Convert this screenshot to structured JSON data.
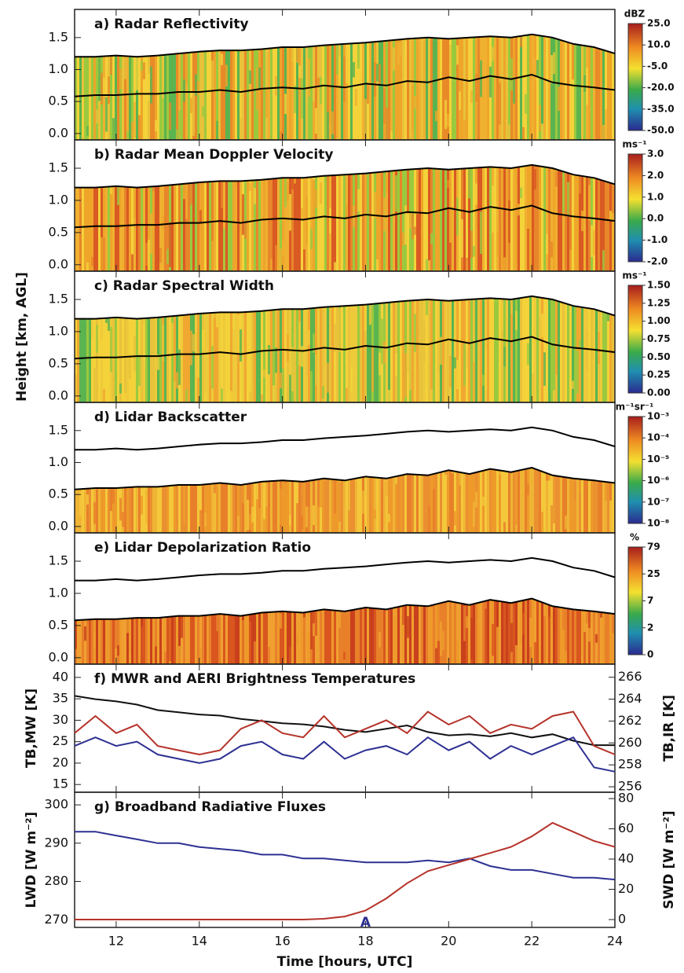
{
  "chart_data": [
    {
      "type": "heatmap",
      "title": "a) Radar Reflectivity",
      "x": [
        11,
        11.5,
        12,
        12.5,
        13,
        13.5,
        14,
        14.5,
        15,
        15.5,
        16,
        16.5,
        17,
        17.5,
        18,
        18.5,
        19,
        19.5,
        20,
        20.5,
        21,
        21.5,
        22,
        22.5,
        23,
        23.5,
        24
      ],
      "series": [
        {
          "color": "#000000",
          "values": [
            0.58,
            0.6,
            0.6,
            0.62,
            0.62,
            0.65,
            0.65,
            0.68,
            0.65,
            0.7,
            0.72,
            0.7,
            0.75,
            0.72,
            0.78,
            0.75,
            0.82,
            0.8,
            0.88,
            0.82,
            0.9,
            0.85,
            0.92,
            0.8,
            0.75,
            0.72,
            0.68
          ]
        },
        {
          "color": "#000000",
          "values": [
            1.2,
            1.2,
            1.22,
            1.2,
            1.22,
            1.25,
            1.28,
            1.3,
            1.3,
            1.32,
            1.35,
            1.35,
            1.38,
            1.4,
            1.42,
            1.45,
            1.48,
            1.5,
            1.48,
            1.5,
            1.52,
            1.5,
            1.55,
            1.5,
            1.4,
            1.35,
            1.25
          ]
        }
      ],
      "xlim": [
        11,
        24
      ],
      "ylim": [
        -0.1,
        1.94
      ],
      "yticks": [
        {
          "value": 0,
          "label": "0.0"
        },
        {
          "value": 0.5,
          "label": "0.5"
        },
        {
          "value": 1,
          "label": "1.0"
        },
        {
          "value": 1.5,
          "label": "1.5"
        }
      ],
      "colorbar": {
        "label": "dBZ",
        "ticks": [
          {
            "value": 25,
            "label": "25.0"
          },
          {
            "value": 10,
            "label": "10.0"
          },
          {
            "value": -5,
            "label": "-5.0"
          },
          {
            "value": -20,
            "label": "-20.0"
          },
          {
            "value": -35,
            "label": "-35.0"
          },
          {
            "value": -50,
            "label": "-50.0"
          }
        ]
      }
    },
    {
      "type": "heatmap",
      "title": "b) Radar Mean Doppler Velocity",
      "x": [
        11,
        11.5,
        12,
        12.5,
        13,
        13.5,
        14,
        14.5,
        15,
        15.5,
        16,
        16.5,
        17,
        17.5,
        18,
        18.5,
        19,
        19.5,
        20,
        20.5,
        21,
        21.5,
        22,
        22.5,
        23,
        23.5,
        24
      ],
      "series": [
        {
          "color": "#000000",
          "values": [
            0.58,
            0.6,
            0.6,
            0.62,
            0.62,
            0.65,
            0.65,
            0.68,
            0.65,
            0.7,
            0.72,
            0.7,
            0.75,
            0.72,
            0.78,
            0.75,
            0.82,
            0.8,
            0.88,
            0.82,
            0.9,
            0.85,
            0.92,
            0.8,
            0.75,
            0.72,
            0.68
          ]
        },
        {
          "color": "#000000",
          "values": [
            1.2,
            1.2,
            1.22,
            1.2,
            1.22,
            1.25,
            1.28,
            1.3,
            1.3,
            1.32,
            1.35,
            1.35,
            1.38,
            1.4,
            1.42,
            1.45,
            1.48,
            1.5,
            1.48,
            1.5,
            1.52,
            1.5,
            1.55,
            1.5,
            1.4,
            1.35,
            1.25
          ]
        }
      ],
      "xlim": [
        11,
        24
      ],
      "ylim": [
        -0.1,
        1.94
      ],
      "yticks": [
        {
          "value": 0,
          "label": "0.0"
        },
        {
          "value": 0.5,
          "label": "0.5"
        },
        {
          "value": 1,
          "label": "1.0"
        },
        {
          "value": 1.5,
          "label": "1.5"
        }
      ],
      "colorbar": {
        "label": "ms⁻¹",
        "ticks": [
          {
            "value": 3,
            "label": "3.0"
          },
          {
            "value": 2,
            "label": "2.0"
          },
          {
            "value": 1,
            "label": "1.0"
          },
          {
            "value": 0,
            "label": "0.0"
          },
          {
            "value": -1,
            "label": "-1.0"
          },
          {
            "value": -2,
            "label": "-2.0"
          }
        ]
      }
    },
    {
      "type": "heatmap",
      "title": "c) Radar Spectral Width",
      "ylabel": "Height [km, AGL]",
      "x": [
        11,
        11.5,
        12,
        12.5,
        13,
        13.5,
        14,
        14.5,
        15,
        15.5,
        16,
        16.5,
        17,
        17.5,
        18,
        18.5,
        19,
        19.5,
        20,
        20.5,
        21,
        21.5,
        22,
        22.5,
        23,
        23.5,
        24
      ],
      "series": [
        {
          "color": "#000000",
          "values": [
            0.58,
            0.6,
            0.6,
            0.62,
            0.62,
            0.65,
            0.65,
            0.68,
            0.65,
            0.7,
            0.72,
            0.7,
            0.75,
            0.72,
            0.78,
            0.75,
            0.82,
            0.8,
            0.88,
            0.82,
            0.9,
            0.85,
            0.92,
            0.8,
            0.75,
            0.72,
            0.68
          ]
        },
        {
          "color": "#000000",
          "values": [
            1.2,
            1.2,
            1.22,
            1.2,
            1.22,
            1.25,
            1.28,
            1.3,
            1.3,
            1.32,
            1.35,
            1.35,
            1.38,
            1.4,
            1.42,
            1.45,
            1.48,
            1.5,
            1.48,
            1.5,
            1.52,
            1.5,
            1.55,
            1.5,
            1.4,
            1.35,
            1.25
          ]
        }
      ],
      "xlim": [
        11,
        24
      ],
      "ylim": [
        -0.1,
        1.94
      ],
      "yticks": [
        {
          "value": 0,
          "label": "0.0"
        },
        {
          "value": 0.5,
          "label": "0.5"
        },
        {
          "value": 1,
          "label": "1.0"
        },
        {
          "value": 1.5,
          "label": "1.5"
        }
      ],
      "colorbar": {
        "label": "ms⁻¹",
        "ticks": [
          {
            "value": 1.5,
            "label": "1.50"
          },
          {
            "value": 1.25,
            "label": "1.25"
          },
          {
            "value": 1,
            "label": "1.00"
          },
          {
            "value": 0.75,
            "label": "0.75"
          },
          {
            "value": 0.5,
            "label": "0.50"
          },
          {
            "value": 0.25,
            "label": "0.25"
          },
          {
            "value": 0,
            "label": "0.00"
          }
        ]
      }
    },
    {
      "type": "heatmap",
      "title": "d) Lidar Backscatter",
      "x": [
        11,
        11.5,
        12,
        12.5,
        13,
        13.5,
        14,
        14.5,
        15,
        15.5,
        16,
        16.5,
        17,
        17.5,
        18,
        18.5,
        19,
        19.5,
        20,
        20.5,
        21,
        21.5,
        22,
        22.5,
        23,
        23.5,
        24
      ],
      "series": [
        {
          "color": "#000000",
          "values": [
            1.2,
            1.2,
            1.22,
            1.2,
            1.22,
            1.25,
            1.28,
            1.3,
            1.3,
            1.32,
            1.35,
            1.35,
            1.38,
            1.4,
            1.42,
            1.45,
            1.48,
            1.5,
            1.48,
            1.5,
            1.52,
            1.5,
            1.55,
            1.5,
            1.4,
            1.35,
            1.25
          ]
        },
        {
          "color": "#000000",
          "values": [
            0.58,
            0.6,
            0.6,
            0.62,
            0.62,
            0.65,
            0.65,
            0.68,
            0.65,
            0.7,
            0.72,
            0.7,
            0.75,
            0.72,
            0.78,
            0.75,
            0.82,
            0.8,
            0.88,
            0.82,
            0.9,
            0.85,
            0.92,
            0.8,
            0.75,
            0.72,
            0.68
          ]
        }
      ],
      "xlim": [
        11,
        24
      ],
      "ylim": [
        -0.1,
        1.94
      ],
      "yticks": [
        {
          "value": 0,
          "label": "0.0"
        },
        {
          "value": 0.5,
          "label": "0.5"
        },
        {
          "value": 1,
          "label": "1.0"
        },
        {
          "value": 1.5,
          "label": "1.5"
        }
      ],
      "colorbar": {
        "label": "m⁻¹sr⁻¹",
        "ticks": [
          {
            "value": 0.001,
            "label": "10⁻³"
          },
          {
            "value": 0.0001,
            "label": "10⁻⁴"
          },
          {
            "value": 1e-05,
            "label": "10⁻⁵"
          },
          {
            "value": 1e-06,
            "label": "10⁻⁶"
          },
          {
            "value": 1e-07,
            "label": "10⁻⁷"
          },
          {
            "value": 1e-08,
            "label": "10⁻⁸"
          }
        ]
      }
    },
    {
      "type": "heatmap",
      "title": "e) Lidar Depolarization Ratio",
      "x": [
        11,
        11.5,
        12,
        12.5,
        13,
        13.5,
        14,
        14.5,
        15,
        15.5,
        16,
        16.5,
        17,
        17.5,
        18,
        18.5,
        19,
        19.5,
        20,
        20.5,
        21,
        21.5,
        22,
        22.5,
        23,
        23.5,
        24
      ],
      "series": [
        {
          "color": "#000000",
          "values": [
            1.2,
            1.2,
            1.22,
            1.2,
            1.22,
            1.25,
            1.28,
            1.3,
            1.3,
            1.32,
            1.35,
            1.35,
            1.38,
            1.4,
            1.42,
            1.45,
            1.48,
            1.5,
            1.48,
            1.5,
            1.52,
            1.5,
            1.55,
            1.5,
            1.4,
            1.35,
            1.25
          ]
        },
        {
          "color": "#000000",
          "values": [
            0.58,
            0.6,
            0.6,
            0.62,
            0.62,
            0.65,
            0.65,
            0.68,
            0.65,
            0.7,
            0.72,
            0.7,
            0.75,
            0.72,
            0.78,
            0.75,
            0.82,
            0.8,
            0.88,
            0.82,
            0.9,
            0.85,
            0.92,
            0.8,
            0.75,
            0.72,
            0.68
          ]
        }
      ],
      "xlim": [
        11,
        24
      ],
      "ylim": [
        -0.1,
        1.94
      ],
      "yticks": [
        {
          "value": 0,
          "label": "0.0"
        },
        {
          "value": 0.5,
          "label": "0.5"
        },
        {
          "value": 1,
          "label": "1.0"
        },
        {
          "value": 1.5,
          "label": "1.5"
        }
      ],
      "colorbar": {
        "label": "%",
        "ticks": [
          79,
          25,
          7,
          2,
          0
        ]
      }
    },
    {
      "type": "line",
      "title": "f) MWR and AERI Brightness Temperatures",
      "ylabel": "TB,MW [K]",
      "y2label": "TB,IR [K]",
      "x": [
        11,
        11.5,
        12,
        12.5,
        13,
        13.5,
        14,
        14.5,
        15,
        15.5,
        16,
        16.5,
        17,
        17.5,
        18,
        18.5,
        19,
        19.5,
        20,
        20.5,
        21,
        21.5,
        22,
        22.5,
        23,
        23.5,
        24
      ],
      "series": [
        {
          "color": "#111111",
          "axis": "y2",
          "values": [
            264.3,
            264,
            263.8,
            263.5,
            263,
            262.8,
            262.6,
            262.5,
            262.2,
            262,
            261.8,
            261.7,
            261.5,
            261.2,
            261,
            261.3,
            261.6,
            261,
            260.7,
            260.8,
            260.6,
            260.9,
            260.5,
            260.8,
            260.2,
            259.8,
            259.8
          ]
        },
        {
          "color": "#b5332a",
          "values": [
            27,
            31,
            27,
            29,
            24,
            23,
            22,
            23,
            28,
            30,
            27,
            26,
            31,
            26,
            28,
            30,
            27,
            32,
            29,
            31,
            27,
            29,
            28,
            31,
            32,
            24,
            22
          ]
        },
        {
          "color": "#2e3192",
          "values": [
            24,
            26,
            24,
            25,
            22,
            21,
            20,
            21,
            24,
            25,
            22,
            21,
            25,
            21,
            23,
            24,
            22,
            26,
            23,
            25,
            21,
            24,
            22,
            24,
            26,
            19,
            18
          ]
        }
      ],
      "xlim": [
        11,
        24
      ],
      "ylim": [
        13.2,
        43.1
      ],
      "yticks": [
        15,
        20,
        25,
        30,
        35,
        40
      ],
      "y2lim": [
        255.5,
        267.2
      ],
      "y2ticks": [
        256,
        258,
        260,
        262,
        264,
        266
      ]
    },
    {
      "type": "line",
      "title": "g) Broadband Radiative Fluxes",
      "ylabel": "LWD [W m⁻²]",
      "y2label": "SWD [W m⁻²]",
      "xlabel": "Time [hours, UTC]",
      "x": [
        11,
        11.5,
        12,
        12.5,
        13,
        13.5,
        14,
        14.5,
        15,
        15.5,
        16,
        16.5,
        17,
        17.5,
        18,
        18.5,
        19,
        19.5,
        20,
        20.5,
        21,
        21.5,
        22,
        22.5,
        23,
        23.5,
        24
      ],
      "series": [
        {
          "color": "#2e3192",
          "values": [
            293,
            293,
            292,
            291,
            290,
            290,
            289,
            288.5,
            288,
            287,
            287,
            286,
            286,
            285.5,
            285,
            285,
            285,
            285.5,
            285,
            286,
            284,
            283,
            283,
            282,
            281,
            281,
            280.5
          ]
        },
        {
          "color": "#b5332a",
          "axis": "y2",
          "values": [
            0,
            0,
            0,
            0,
            0,
            0,
            0,
            0,
            0,
            0,
            0,
            0,
            0.5,
            2,
            6,
            14,
            24,
            32,
            36,
            40,
            44,
            48,
            55,
            64,
            58,
            52,
            48
          ]
        }
      ],
      "xlim": [
        11,
        24
      ],
      "xticks": [
        12,
        14,
        16,
        18,
        20,
        22,
        24
      ],
      "ylim": [
        268,
        303.3
      ],
      "yticks": [
        270,
        280,
        290,
        300
      ],
      "y2lim": [
        -5.2,
        84.2
      ],
      "y2ticks": [
        0,
        20,
        40,
        60,
        80
      ],
      "annotations": [
        {
          "text": "A",
          "x": 18,
          "color": "#2e3192"
        }
      ]
    }
  ]
}
